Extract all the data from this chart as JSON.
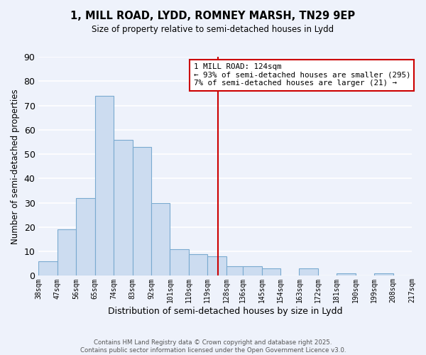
{
  "title1": "1, MILL ROAD, LYDD, ROMNEY MARSH, TN29 9EP",
  "title2": "Size of property relative to semi-detached houses in Lydd",
  "xlabel": "Distribution of semi-detached houses by size in Lydd",
  "ylabel": "Number of semi-detached properties",
  "bar_color": "#ccdcf0",
  "bar_edge_color": "#7aaad0",
  "bins": [
    38,
    47,
    56,
    65,
    74,
    83,
    92,
    101,
    110,
    119,
    128,
    136,
    145,
    154,
    163,
    172,
    181,
    190,
    199,
    208,
    217
  ],
  "counts": [
    6,
    19,
    32,
    74,
    56,
    53,
    30,
    11,
    9,
    8,
    4,
    4,
    3,
    0,
    3,
    0,
    1,
    0,
    1,
    0
  ],
  "property_value": 124,
  "vline_color": "#cc0000",
  "annotation_line1": "1 MILL ROAD: 124sqm",
  "annotation_line2": "← 93% of semi-detached houses are smaller (295)",
  "annotation_line3": "7% of semi-detached houses are larger (21) →",
  "annotation_box_color": "#ffffff",
  "annotation_box_edge": "#cc0000",
  "ylim": [
    0,
    90
  ],
  "yticks": [
    0,
    10,
    20,
    30,
    40,
    50,
    60,
    70,
    80,
    90
  ],
  "tick_labels": [
    "38sqm",
    "47sqm",
    "56sqm",
    "65sqm",
    "74sqm",
    "83sqm",
    "92sqm",
    "101sqm",
    "110sqm",
    "119sqm",
    "128sqm",
    "136sqm",
    "145sqm",
    "154sqm",
    "163sqm",
    "172sqm",
    "181sqm",
    "190sqm",
    "199sqm",
    "208sqm",
    "217sqm"
  ],
  "footer1": "Contains HM Land Registry data © Crown copyright and database right 2025.",
  "footer2": "Contains public sector information licensed under the Open Government Licence v3.0.",
  "background_color": "#eef2fb",
  "grid_color": "#ffffff"
}
